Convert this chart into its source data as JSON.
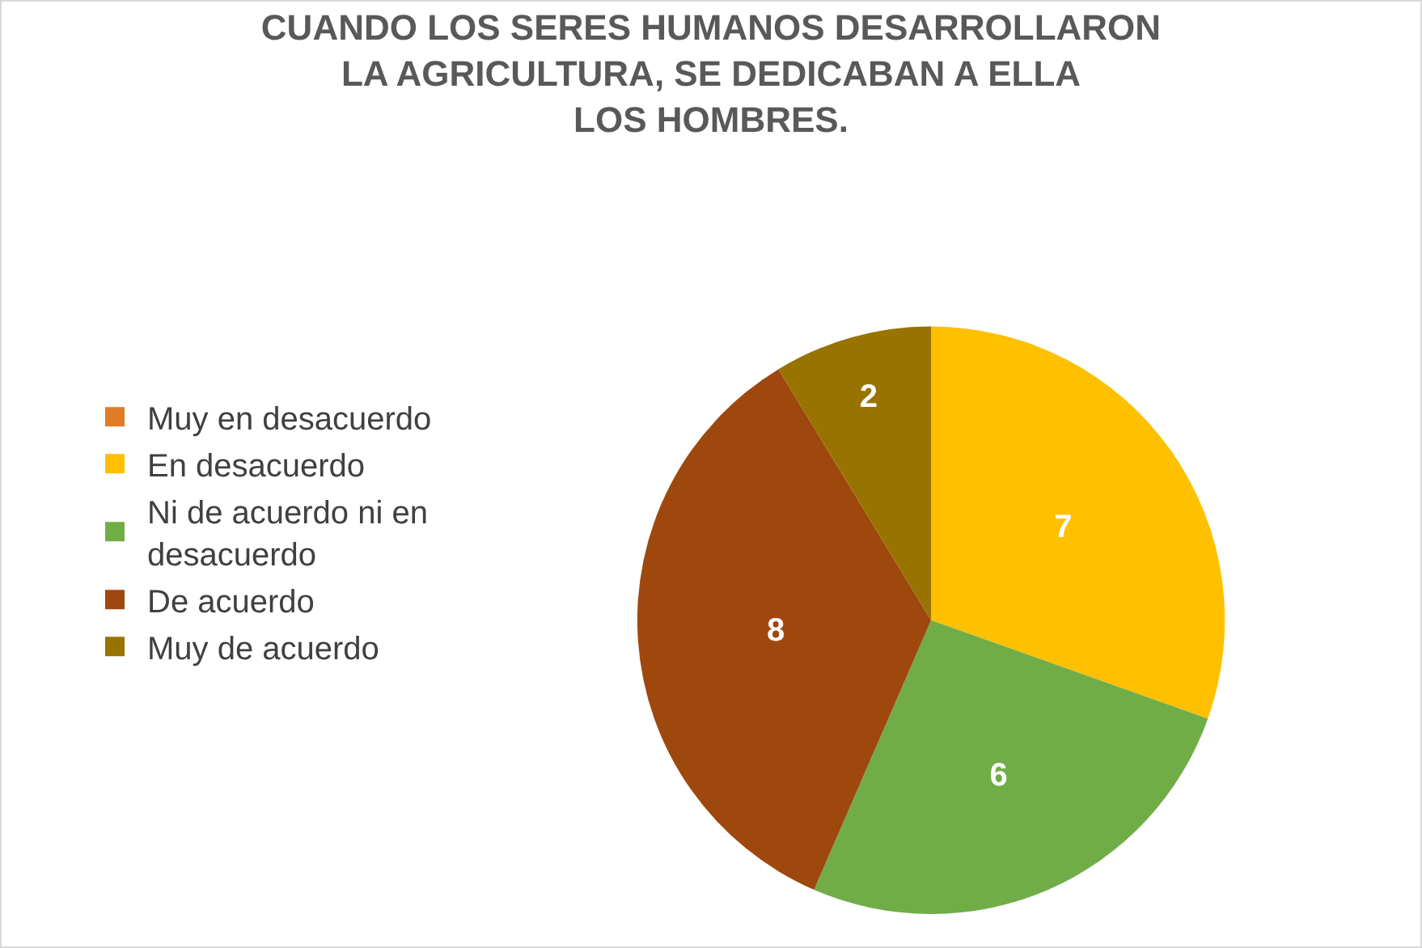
{
  "chart_data": {
    "type": "pie",
    "title": "CUANDO LOS SERES HUMANOS DESARROLLARON LA AGRICULTURA, SE DEDICABAN A ELLA LOS HOMBRES.",
    "categories": [
      "Muy en desacuerdo",
      "En desacuerdo",
      "Ni de acuerdo ni en desacuerdo",
      "De acuerdo",
      "Muy de acuerdo"
    ],
    "values": [
      0,
      7,
      6,
      8,
      2
    ],
    "value_labels": [
      null,
      "7",
      "6",
      "8",
      "2"
    ],
    "colors": [
      "#e07b28",
      "#ffc000",
      "#70ad47",
      "#9e480e",
      "#997300"
    ],
    "legend": "left"
  }
}
